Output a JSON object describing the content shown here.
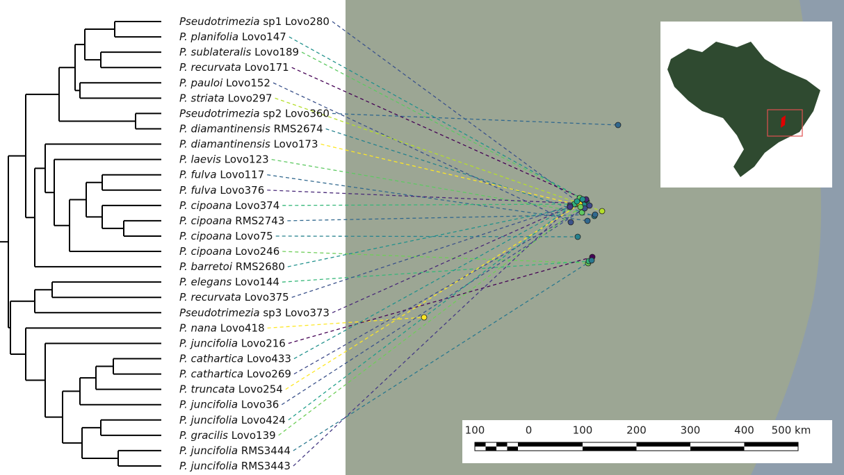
{
  "tips": [
    {
      "taxon": "Pseudotrimezia",
      "label": "sp1 Lovo280"
    },
    {
      "taxon": "P. planifolia",
      "label": "Lovo147"
    },
    {
      "taxon": "P. sublateralis",
      "label": "Lovo189"
    },
    {
      "taxon": "P. recurvata",
      "label": "Lovo171"
    },
    {
      "taxon": "P. pauloi",
      "label": "Lovo152"
    },
    {
      "taxon": "P. striata",
      "label": "Lovo297"
    },
    {
      "taxon": "Pseudotrimezia",
      "label": "sp2 Lovo360"
    },
    {
      "taxon": "P. diamantinensis",
      "label": "RMS2674"
    },
    {
      "taxon": "P. diamantinensis",
      "label": "Lovo173"
    },
    {
      "taxon": "P. laevis",
      "label": "Lovo123"
    },
    {
      "taxon": "P. fulva",
      "label": "Lovo117"
    },
    {
      "taxon": "P. fulva",
      "label": "Lovo376"
    },
    {
      "taxon": "P. cipoana",
      "label": "Lovo374"
    },
    {
      "taxon": "P. cipoana",
      "label": "RMS2743"
    },
    {
      "taxon": "P. cipoana",
      "label": "Lovo75"
    },
    {
      "taxon": "P. cipoana",
      "label": "Lovo246"
    },
    {
      "taxon": "P. barretoi",
      "label": "RMS2680"
    },
    {
      "taxon": "P. elegans",
      "label": "Lovo144"
    },
    {
      "taxon": "P. recurvata",
      "label": "Lovo375"
    },
    {
      "taxon": "Pseudotrimezia",
      "label": "sp3 Lovo373"
    },
    {
      "taxon": "P. nana",
      "label": "Lovo418"
    },
    {
      "taxon": "P. juncifolia",
      "label": "Lovo216"
    },
    {
      "taxon": "P. cathartica",
      "label": "Lovo433"
    },
    {
      "taxon": "P. cathartica",
      "label": "Lovo269"
    },
    {
      "taxon": "P. truncata",
      "label": "Lovo254"
    },
    {
      "taxon": "P. juncifolia",
      "label": "Lovo36"
    },
    {
      "taxon": "P. juncifolia",
      "label": "Lovo424"
    },
    {
      "taxon": "P. gracilis",
      "label": "Lovo139"
    },
    {
      "taxon": "P. juncifolia",
      "label": "RMS3444"
    },
    {
      "taxon": "P. juncifolia",
      "label": "RMS3443"
    }
  ],
  "scale_bar": {
    "labels": [
      "100",
      "0",
      "100",
      "200",
      "300",
      "400",
      "500 km"
    ]
  }
}
